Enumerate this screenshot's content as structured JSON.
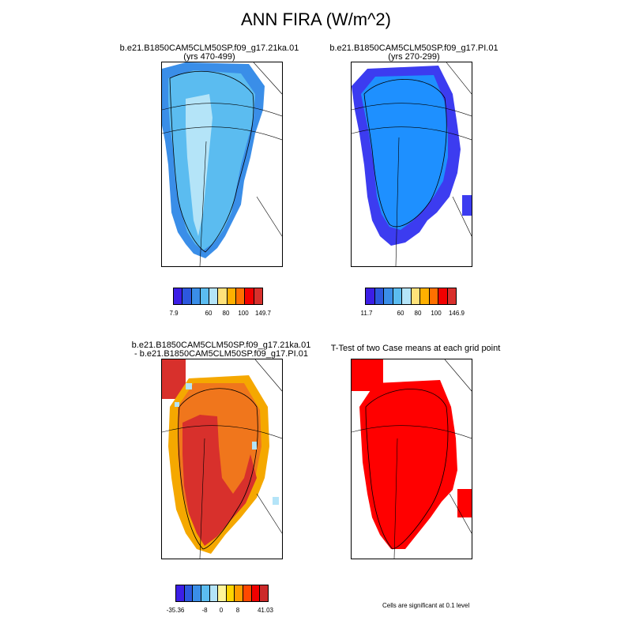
{
  "title": "ANN FIRA (W/m^2)",
  "panels": {
    "top_left": {
      "title1": "b.e21.B1850CAM5CLM50SP.f09_g17.21ka.01",
      "title2": "(yrs 470-499)"
    },
    "top_right": {
      "title1": "b.e21.B1850CAM5CLM50SP.f09_g17.PI.01",
      "title2": "(yrs 270-299)"
    },
    "bottom_left": {
      "title1": "b.e21.B1850CAM5CLM50SP.f09_g17.21ka.01",
      "title2": "- b.e21.B1850CAM5CLM50SP.f09_g17.PI.01"
    },
    "bottom_right": {
      "title1": "T-Test of two Case means at each grid point",
      "note": "Cells are significant at 0.1 level"
    }
  },
  "colorbars": {
    "seq_colors": [
      "#3c1ee6",
      "#2c58de",
      "#3a8ee8",
      "#5bbcf0",
      "#b4e4f8",
      "#ffe27a",
      "#ffb000",
      "#ff7000",
      "#f20000",
      "#d8302c"
    ],
    "div_colors": [
      "#3c1ee6",
      "#2c58de",
      "#3a8ee8",
      "#5bbcf0",
      "#b4e4f8",
      "#fff59a",
      "#ffd400",
      "#ff9c00",
      "#ff4800",
      "#f00000",
      "#cc2a2a"
    ],
    "top_left": [
      "7.9",
      "60",
      "80",
      "100",
      "149.7"
    ],
    "top_right": [
      "11.7",
      "60",
      "80",
      "100",
      "146.9"
    ],
    "bottom_left": [
      "-35.36",
      "-8",
      "0",
      "8",
      "41.03"
    ]
  },
  "map_colors": {
    "land_21ka": "#5bbcf0",
    "ice_21ka": "#b4e4f8",
    "edge_21ka": "#3a8ee8",
    "land_pi": "#1e90ff",
    "edge_pi": "#3c3cf0",
    "diff_high": "#d8302c",
    "diff_mid": "#f0761c",
    "diff_low": "#f5a800",
    "ttest": "#ff0000"
  }
}
